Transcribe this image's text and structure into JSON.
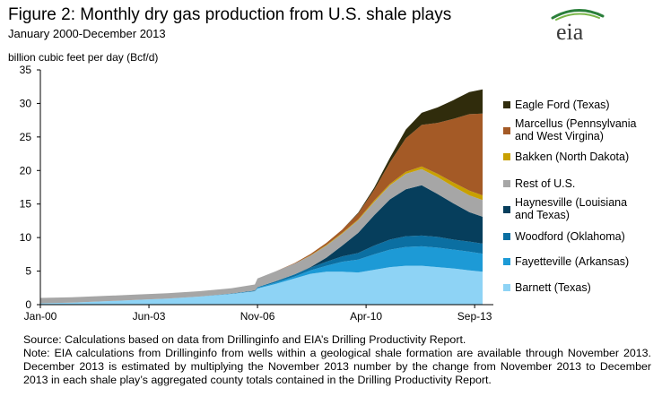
{
  "header": {
    "title": "Figure 2: Monthly dry gas production from U.S. shale plays",
    "subtitle": "January 2000-December 2013",
    "logo_text": "eia"
  },
  "footer": {
    "source": "Source: Calculations based on data from Drillinginfo and EIA’s Drilling Productivity Report.",
    "note": "Note: EIA calculations from Drillinginfo from wells within a geological shale formation are available through November 2013. December 2013 is estimated by multiplying the November 2013 number by the change from November 2013 to December 2013 in each shale play’s aggregated county totals contained in the Drilling Productivity Report."
  },
  "chart_data": {
    "type": "area",
    "stacked": true,
    "ylabel": "billion cubic feet per day (Bcf/d)",
    "ylim": [
      0,
      35
    ],
    "yticks": [
      0,
      5,
      10,
      15,
      20,
      25,
      30,
      35
    ],
    "xlim": [
      "2000-01",
      "2013-12"
    ],
    "xticks": [
      "Jan-00",
      "Jun-03",
      "Nov-06",
      "Apr-10",
      "Sep-13"
    ],
    "xtick_dates": [
      "2000-01",
      "2003-06",
      "2006-11",
      "2010-04",
      "2013-09"
    ],
    "grid": false,
    "legend_position": "right",
    "x": [
      "2000-01",
      "2001-01",
      "2002-01",
      "2003-01",
      "2004-01",
      "2005-01",
      "2006-01",
      "2006-10",
      "2006-11",
      "2007-06",
      "2008-01",
      "2008-07",
      "2009-01",
      "2009-07",
      "2010-01",
      "2010-07",
      "2011-01",
      "2011-07",
      "2012-01",
      "2012-07",
      "2013-01",
      "2013-07",
      "2013-12"
    ],
    "series": [
      {
        "name": "Barnett (Texas)",
        "color": "#8ed3f5",
        "values": [
          0.2,
          0.3,
          0.5,
          0.7,
          0.9,
          1.2,
          1.6,
          2.0,
          2.4,
          3.1,
          3.9,
          4.6,
          4.9,
          4.9,
          4.8,
          5.2,
          5.6,
          5.8,
          5.8,
          5.6,
          5.4,
          5.1,
          4.9
        ]
      },
      {
        "name": "Fayetteville (Arkansas)",
        "color": "#1d9ad6",
        "values": [
          0,
          0,
          0,
          0,
          0,
          0,
          0,
          0,
          0.1,
          0.2,
          0.3,
          0.5,
          0.9,
          1.5,
          1.9,
          2.3,
          2.6,
          2.8,
          2.9,
          2.9,
          2.8,
          2.8,
          2.7
        ]
      },
      {
        "name": "Woodford (Oklahoma)",
        "color": "#0b6fa2",
        "values": [
          0,
          0,
          0,
          0,
          0,
          0,
          0.05,
          0.1,
          0.1,
          0.2,
          0.3,
          0.4,
          0.6,
          0.8,
          1.0,
          1.3,
          1.5,
          1.6,
          1.6,
          1.6,
          1.5,
          1.5,
          1.5
        ]
      },
      {
        "name": "Haynesville (Louisiana and Texas)",
        "color": "#063e5c",
        "values": [
          0,
          0,
          0,
          0,
          0,
          0,
          0,
          0,
          0,
          0,
          0,
          0.1,
          0.6,
          1.6,
          3.0,
          4.5,
          6.0,
          7.0,
          7.5,
          6.4,
          5.4,
          4.4,
          4.0
        ]
      },
      {
        "name": "Rest of U.S.",
        "color": "#a6a6a6",
        "values": [
          0.8,
          0.8,
          0.8,
          0.8,
          0.8,
          0.8,
          0.8,
          0.9,
          1.3,
          1.5,
          1.6,
          1.7,
          1.8,
          1.8,
          1.9,
          2.0,
          2.1,
          2.3,
          2.4,
          2.5,
          2.5,
          2.5,
          2.5
        ]
      },
      {
        "name": "Bakken (North Dakota)",
        "color": "#c8a000",
        "values": [
          0,
          0,
          0,
          0,
          0,
          0,
          0,
          0,
          0,
          0,
          0,
          0.05,
          0.1,
          0.1,
          0.1,
          0.2,
          0.2,
          0.3,
          0.4,
          0.5,
          0.6,
          0.7,
          0.7
        ]
      },
      {
        "name": "Marcellus (Pennsylvania and West Virgina)",
        "color": "#a45a26",
        "values": [
          0,
          0,
          0,
          0,
          0,
          0,
          0,
          0,
          0,
          0,
          0.1,
          0.2,
          0.3,
          0.5,
          0.9,
          1.6,
          3.2,
          5.0,
          6.2,
          7.6,
          9.5,
          11.4,
          12.2
        ]
      },
      {
        "name": "Eagle Ford (Texas)",
        "color": "#302c0c",
        "values": [
          0,
          0,
          0,
          0,
          0,
          0,
          0,
          0,
          0,
          0,
          0,
          0,
          0,
          0,
          0.1,
          0.3,
          0.7,
          1.3,
          1.8,
          2.3,
          2.8,
          3.3,
          3.6
        ]
      }
    ],
    "legend_order": [
      "Eagle Ford (Texas)",
      "Marcellus (Pennsylvania and West Virgina)",
      "Bakken (North Dakota)",
      "Rest of U.S.",
      "Haynesville (Louisiana and Texas)",
      "Woodford (Oklahoma)",
      "Fayetteville (Arkansas)",
      "Barnett (Texas)"
    ]
  }
}
